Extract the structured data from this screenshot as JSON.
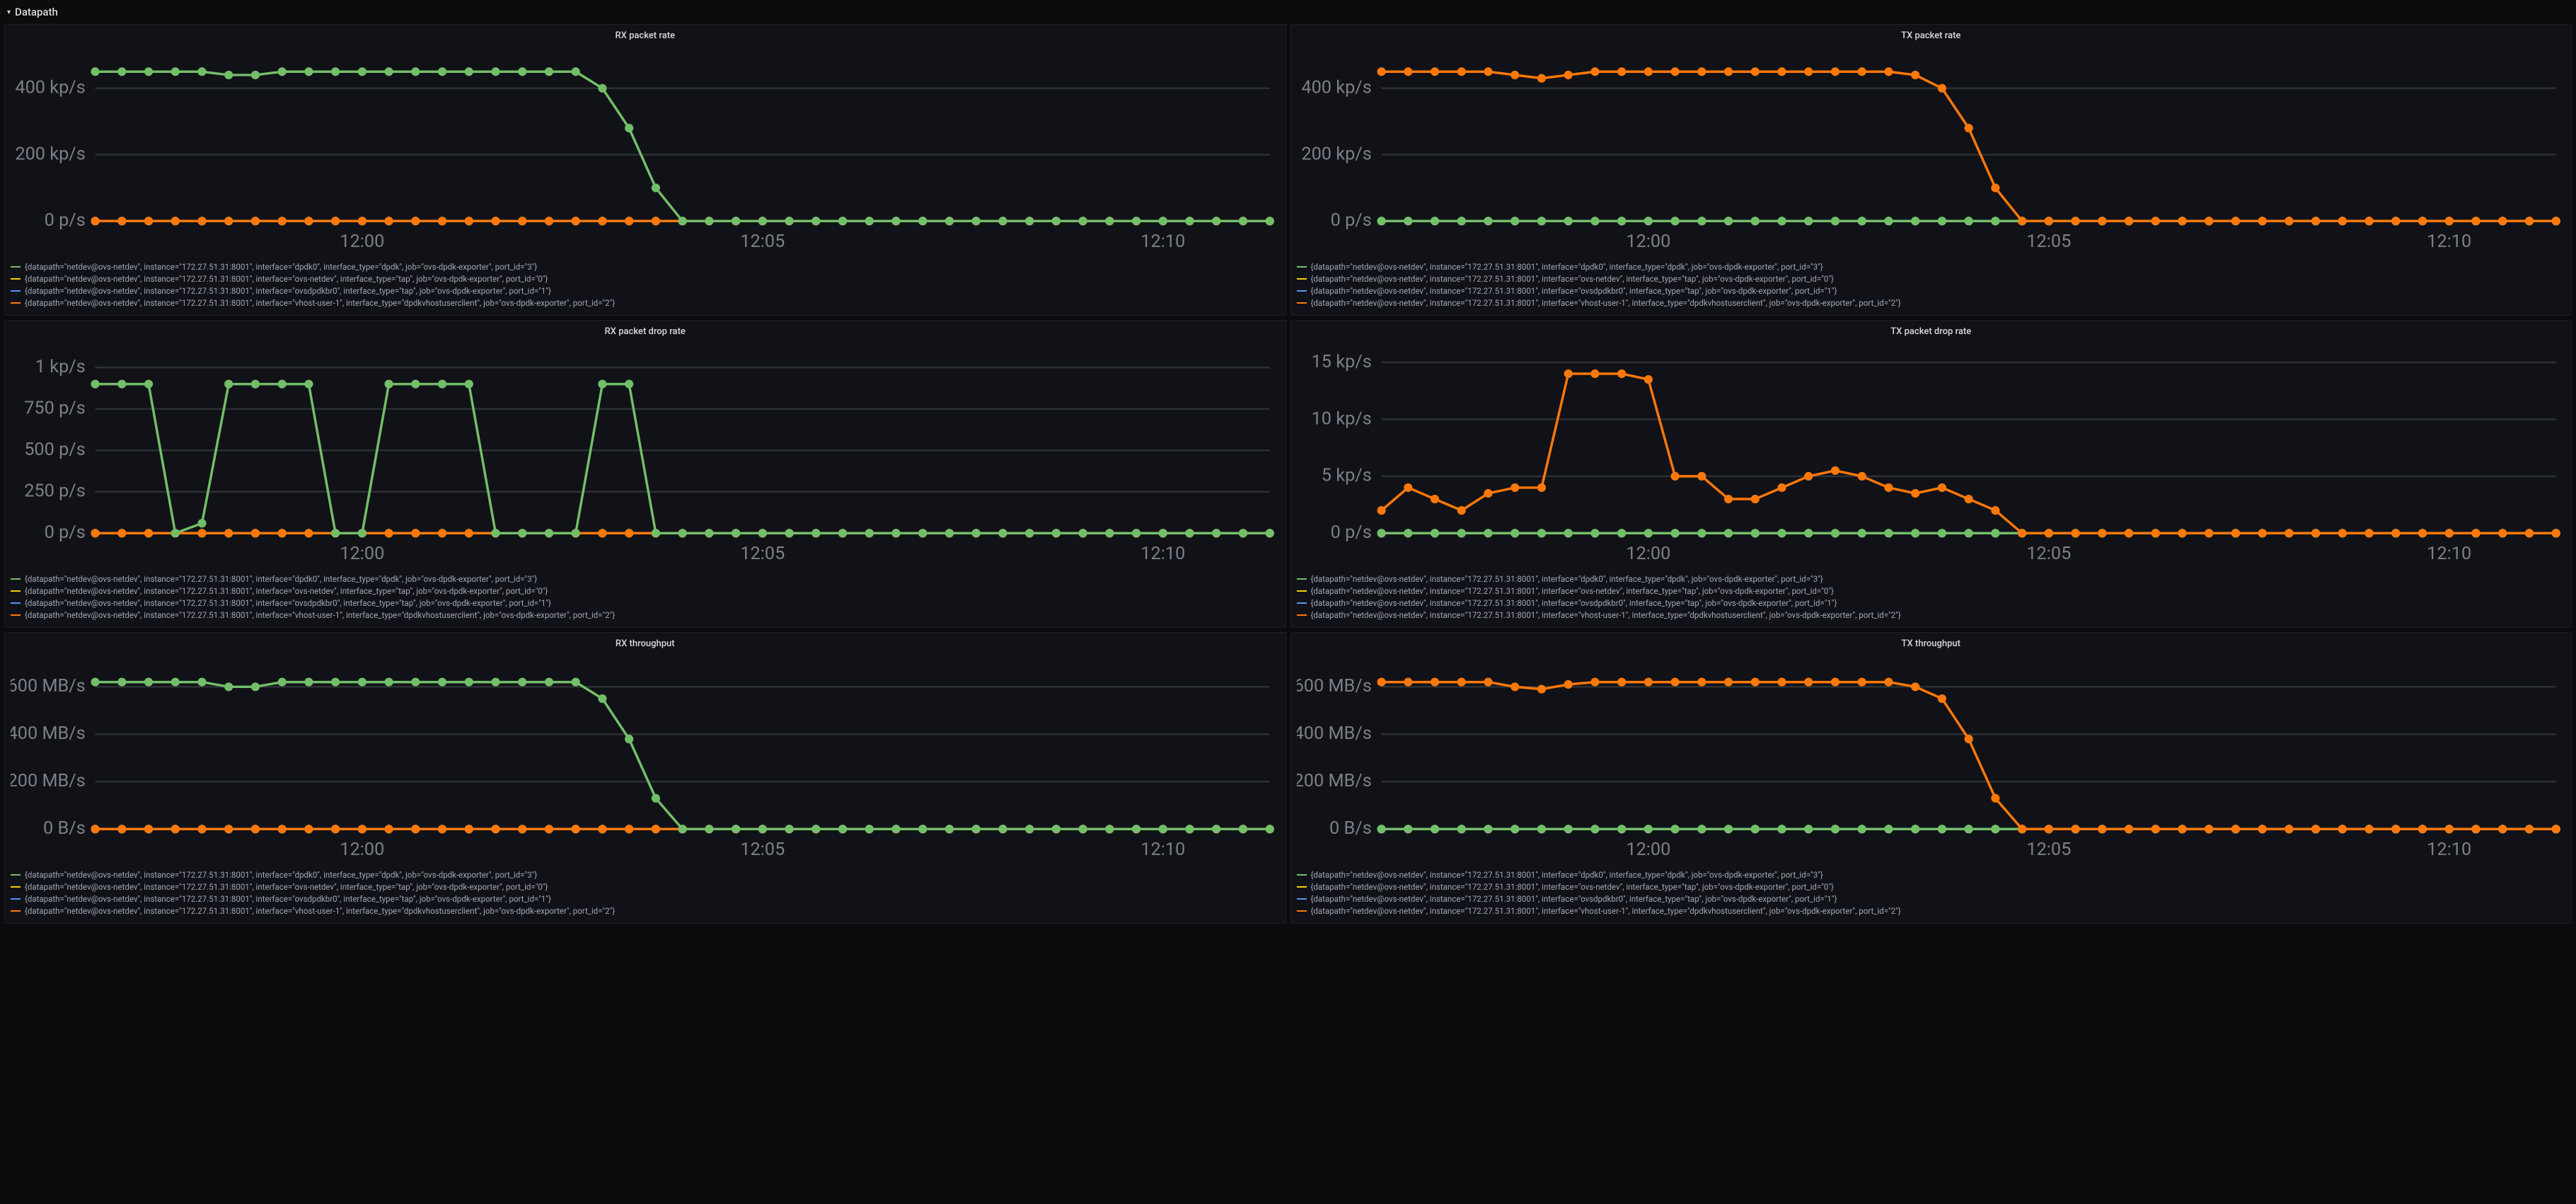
{
  "section": {
    "title": "Datapath"
  },
  "colors": {
    "bg": "#0b0c0e",
    "panel_bg": "#111217",
    "panel_border": "#1f1f23",
    "grid": "#2c3235",
    "axis_text": "#7b8087",
    "title_text": "#d8d9da",
    "legend_text": "#9fa7b3"
  },
  "series_colors": {
    "green": "#73bf69",
    "yellow": "#f2cc0c",
    "blue": "#5794f2",
    "orange": "#ff780a"
  },
  "x_axis": {
    "ticks": [
      "12:00",
      "12:05",
      "12:10"
    ],
    "n_points": 45,
    "tick_positions": [
      10,
      25,
      40
    ]
  },
  "legends": [
    {
      "color": "green",
      "label": "{datapath=\"netdev@ovs-netdev\", instance=\"172.27.51.31:8001\", interface=\"dpdk0\", interface_type=\"dpdk\", job=\"ovs-dpdk-exporter\", port_id=\"3\"}"
    },
    {
      "color": "yellow",
      "label": "{datapath=\"netdev@ovs-netdev\", instance=\"172.27.51.31:8001\", interface=\"ovs-netdev\", interface_type=\"tap\", job=\"ovs-dpdk-exporter\", port_id=\"0\"}"
    },
    {
      "color": "blue",
      "label": "{datapath=\"netdev@ovs-netdev\", instance=\"172.27.51.31:8001\", interface=\"ovsdpdkbr0\", interface_type=\"tap\", job=\"ovs-dpdk-exporter\", port_id=\"1\"}"
    },
    {
      "color": "orange",
      "label": "{datapath=\"netdev@ovs-netdev\", instance=\"172.27.51.31:8001\", interface=\"vhost-user-1\", interface_type=\"dpdkvhostuserclient\", job=\"ovs-dpdk-exporter\", port_id=\"2\"}"
    }
  ],
  "panels": [
    {
      "id": "rx_packet_rate",
      "title": "RX packet rate",
      "y": {
        "ticks": [
          0,
          200,
          400
        ],
        "labels": [
          "0 p/s",
          "200 kp/s",
          "400 kp/s"
        ],
        "max": 500
      },
      "series": {
        "green": [
          450,
          450,
          450,
          450,
          450,
          440,
          440,
          450,
          450,
          450,
          450,
          450,
          450,
          450,
          450,
          450,
          450,
          450,
          450,
          400,
          280,
          100,
          0,
          0,
          0,
          0,
          0,
          0,
          0,
          0,
          0,
          0,
          0,
          0,
          0,
          0,
          0,
          0,
          0,
          0,
          0,
          0,
          0,
          0,
          0
        ],
        "yellow": [
          0,
          0,
          0,
          0,
          0,
          0,
          0,
          0,
          0,
          0,
          0,
          0,
          0,
          0,
          0,
          0,
          0,
          0,
          0,
          0,
          0,
          0,
          0,
          0,
          0,
          0,
          0,
          0,
          0,
          0,
          0,
          0,
          0,
          0,
          0,
          0,
          0,
          0,
          0,
          0,
          0,
          0,
          0,
          0,
          0
        ],
        "blue": [
          0,
          0,
          0,
          0,
          0,
          0,
          0,
          0,
          0,
          0,
          0,
          0,
          0,
          0,
          0,
          0,
          0,
          0,
          0,
          0,
          0,
          0,
          0,
          0,
          0,
          0,
          0,
          0,
          0,
          0,
          0,
          0,
          0,
          0,
          0,
          0,
          0,
          0,
          0,
          0,
          0,
          0,
          0,
          0,
          0
        ],
        "orange": [
          0,
          0,
          0,
          0,
          0,
          0,
          0,
          0,
          0,
          0,
          0,
          0,
          0,
          0,
          0,
          0,
          0,
          0,
          0,
          0,
          0,
          0,
          0,
          0,
          0,
          0,
          0,
          0,
          0,
          0,
          0,
          0,
          0,
          0,
          0,
          0,
          0,
          0,
          0,
          0,
          0,
          0,
          0,
          0,
          0
        ]
      }
    },
    {
      "id": "tx_packet_rate",
      "title": "TX packet rate",
      "y": {
        "ticks": [
          0,
          200,
          400
        ],
        "labels": [
          "0 p/s",
          "200 kp/s",
          "400 kp/s"
        ],
        "max": 500
      },
      "series": {
        "green": [
          0,
          0,
          0,
          0,
          0,
          0,
          0,
          0,
          0,
          0,
          0,
          0,
          0,
          0,
          0,
          0,
          0,
          0,
          0,
          0,
          0,
          0,
          0,
          0,
          0,
          0,
          0,
          0,
          0,
          0,
          0,
          0,
          0,
          0,
          0,
          0,
          0,
          0,
          0,
          0,
          0,
          0,
          0,
          0,
          0
        ],
        "yellow": [
          0,
          0,
          0,
          0,
          0,
          0,
          0,
          0,
          0,
          0,
          0,
          0,
          0,
          0,
          0,
          0,
          0,
          0,
          0,
          0,
          0,
          0,
          0,
          0,
          0,
          0,
          0,
          0,
          0,
          0,
          0,
          0,
          0,
          0,
          0,
          0,
          0,
          0,
          0,
          0,
          0,
          0,
          0,
          0,
          0
        ],
        "blue": [
          0,
          0,
          0,
          0,
          0,
          0,
          0,
          0,
          0,
          0,
          0,
          0,
          0,
          0,
          0,
          0,
          0,
          0,
          0,
          0,
          0,
          0,
          0,
          0,
          0,
          0,
          0,
          0,
          0,
          0,
          0,
          0,
          0,
          0,
          0,
          0,
          0,
          0,
          0,
          0,
          0,
          0,
          0,
          0,
          0
        ],
        "orange": [
          450,
          450,
          450,
          450,
          450,
          440,
          430,
          440,
          450,
          450,
          450,
          450,
          450,
          450,
          450,
          450,
          450,
          450,
          450,
          450,
          440,
          400,
          280,
          100,
          0,
          0,
          0,
          0,
          0,
          0,
          0,
          0,
          0,
          0,
          0,
          0,
          0,
          0,
          0,
          0,
          0,
          0,
          0,
          0,
          0
        ]
      }
    },
    {
      "id": "rx_packet_drop_rate",
      "title": "RX packet drop rate",
      "y": {
        "ticks": [
          0,
          250,
          500,
          750,
          1000
        ],
        "labels": [
          "0 p/s",
          "250 p/s",
          "500 p/s",
          "750 p/s",
          "1 kp/s"
        ],
        "max": 1100
      },
      "series": {
        "green": [
          900,
          900,
          900,
          0,
          60,
          900,
          900,
          900,
          900,
          0,
          0,
          900,
          900,
          900,
          900,
          0,
          0,
          0,
          0,
          900,
          900,
          0,
          0,
          0,
          0,
          0,
          0,
          0,
          0,
          0,
          0,
          0,
          0,
          0,
          0,
          0,
          0,
          0,
          0,
          0,
          0,
          0,
          0,
          0,
          0
        ],
        "yellow": [
          0,
          0,
          0,
          0,
          0,
          0,
          0,
          0,
          0,
          0,
          0,
          0,
          0,
          0,
          0,
          0,
          0,
          0,
          0,
          0,
          0,
          0,
          0,
          0,
          0,
          0,
          0,
          0,
          0,
          0,
          0,
          0,
          0,
          0,
          0,
          0,
          0,
          0,
          0,
          0,
          0,
          0,
          0,
          0,
          0
        ],
        "blue": [
          0,
          0,
          0,
          0,
          0,
          0,
          0,
          0,
          0,
          0,
          0,
          0,
          0,
          0,
          0,
          0,
          0,
          0,
          0,
          0,
          0,
          0,
          0,
          0,
          0,
          0,
          0,
          0,
          0,
          0,
          0,
          0,
          0,
          0,
          0,
          0,
          0,
          0,
          0,
          0,
          0,
          0,
          0,
          0,
          0
        ],
        "orange": [
          0,
          0,
          0,
          0,
          0,
          0,
          0,
          0,
          0,
          0,
          0,
          0,
          0,
          0,
          0,
          0,
          0,
          0,
          0,
          0,
          0,
          0,
          0,
          0,
          0,
          0,
          0,
          0,
          0,
          0,
          0,
          0,
          0,
          0,
          0,
          0,
          0,
          0,
          0,
          0,
          0,
          0,
          0,
          0,
          0
        ]
      }
    },
    {
      "id": "tx_packet_drop_rate",
      "title": "TX packet drop rate",
      "y": {
        "ticks": [
          0,
          5,
          10,
          15
        ],
        "labels": [
          "0 p/s",
          "5 kp/s",
          "10 kp/s",
          "15 kp/s"
        ],
        "max": 16
      },
      "series": {
        "green": [
          0,
          0,
          0,
          0,
          0,
          0,
          0,
          0,
          0,
          0,
          0,
          0,
          0,
          0,
          0,
          0,
          0,
          0,
          0,
          0,
          0,
          0,
          0,
          0,
          0,
          0,
          0,
          0,
          0,
          0,
          0,
          0,
          0,
          0,
          0,
          0,
          0,
          0,
          0,
          0,
          0,
          0,
          0,
          0,
          0
        ],
        "yellow": [
          0,
          0,
          0,
          0,
          0,
          0,
          0,
          0,
          0,
          0,
          0,
          0,
          0,
          0,
          0,
          0,
          0,
          0,
          0,
          0,
          0,
          0,
          0,
          0,
          0,
          0,
          0,
          0,
          0,
          0,
          0,
          0,
          0,
          0,
          0,
          0,
          0,
          0,
          0,
          0,
          0,
          0,
          0,
          0,
          0
        ],
        "blue": [
          0,
          0,
          0,
          0,
          0,
          0,
          0,
          0,
          0,
          0,
          0,
          0,
          0,
          0,
          0,
          0,
          0,
          0,
          0,
          0,
          0,
          0,
          0,
          0,
          0,
          0,
          0,
          0,
          0,
          0,
          0,
          0,
          0,
          0,
          0,
          0,
          0,
          0,
          0,
          0,
          0,
          0,
          0,
          0,
          0
        ],
        "orange": [
          2,
          4,
          3,
          2,
          3.5,
          4,
          4,
          14,
          14,
          14,
          13.5,
          5,
          5,
          3,
          3,
          4,
          5,
          5.5,
          5,
          4,
          3.5,
          4,
          3,
          2,
          0,
          0,
          0,
          0,
          0,
          0,
          0,
          0,
          0,
          0,
          0,
          0,
          0,
          0,
          0,
          0,
          0,
          0,
          0,
          0,
          0
        ]
      }
    },
    {
      "id": "rx_throughput",
      "title": "RX throughput",
      "y": {
        "ticks": [
          0,
          200,
          400,
          600
        ],
        "labels": [
          "0 B/s",
          "200 MB/s",
          "400 MB/s",
          "600 MB/s"
        ],
        "max": 700
      },
      "series": {
        "green": [
          620,
          620,
          620,
          620,
          620,
          600,
          600,
          620,
          620,
          620,
          620,
          620,
          620,
          620,
          620,
          620,
          620,
          620,
          620,
          550,
          380,
          130,
          0,
          0,
          0,
          0,
          0,
          0,
          0,
          0,
          0,
          0,
          0,
          0,
          0,
          0,
          0,
          0,
          0,
          0,
          0,
          0,
          0,
          0,
          0
        ],
        "yellow": [
          0,
          0,
          0,
          0,
          0,
          0,
          0,
          0,
          0,
          0,
          0,
          0,
          0,
          0,
          0,
          0,
          0,
          0,
          0,
          0,
          0,
          0,
          0,
          0,
          0,
          0,
          0,
          0,
          0,
          0,
          0,
          0,
          0,
          0,
          0,
          0,
          0,
          0,
          0,
          0,
          0,
          0,
          0,
          0,
          0
        ],
        "blue": [
          0,
          0,
          0,
          0,
          0,
          0,
          0,
          0,
          0,
          0,
          0,
          0,
          0,
          0,
          0,
          0,
          0,
          0,
          0,
          0,
          0,
          0,
          0,
          0,
          0,
          0,
          0,
          0,
          0,
          0,
          0,
          0,
          0,
          0,
          0,
          0,
          0,
          0,
          0,
          0,
          0,
          0,
          0,
          0,
          0
        ],
        "orange": [
          0,
          0,
          0,
          0,
          0,
          0,
          0,
          0,
          0,
          0,
          0,
          0,
          0,
          0,
          0,
          0,
          0,
          0,
          0,
          0,
          0,
          0,
          0,
          0,
          0,
          0,
          0,
          0,
          0,
          0,
          0,
          0,
          0,
          0,
          0,
          0,
          0,
          0,
          0,
          0,
          0,
          0,
          0,
          0,
          0
        ]
      }
    },
    {
      "id": "tx_throughput",
      "title": "TX throughput",
      "y": {
        "ticks": [
          0,
          200,
          400,
          600
        ],
        "labels": [
          "0 B/s",
          "200 MB/s",
          "400 MB/s",
          "600 MB/s"
        ],
        "max": 700
      },
      "series": {
        "green": [
          0,
          0,
          0,
          0,
          0,
          0,
          0,
          0,
          0,
          0,
          0,
          0,
          0,
          0,
          0,
          0,
          0,
          0,
          0,
          0,
          0,
          0,
          0,
          0,
          0,
          0,
          0,
          0,
          0,
          0,
          0,
          0,
          0,
          0,
          0,
          0,
          0,
          0,
          0,
          0,
          0,
          0,
          0,
          0,
          0
        ],
        "yellow": [
          0,
          0,
          0,
          0,
          0,
          0,
          0,
          0,
          0,
          0,
          0,
          0,
          0,
          0,
          0,
          0,
          0,
          0,
          0,
          0,
          0,
          0,
          0,
          0,
          0,
          0,
          0,
          0,
          0,
          0,
          0,
          0,
          0,
          0,
          0,
          0,
          0,
          0,
          0,
          0,
          0,
          0,
          0,
          0,
          0
        ],
        "blue": [
          0,
          0,
          0,
          0,
          0,
          0,
          0,
          0,
          0,
          0,
          0,
          0,
          0,
          0,
          0,
          0,
          0,
          0,
          0,
          0,
          0,
          0,
          0,
          0,
          0,
          0,
          0,
          0,
          0,
          0,
          0,
          0,
          0,
          0,
          0,
          0,
          0,
          0,
          0,
          0,
          0,
          0,
          0,
          0,
          0
        ],
        "orange": [
          620,
          620,
          620,
          620,
          620,
          600,
          590,
          610,
          620,
          620,
          620,
          620,
          620,
          620,
          620,
          620,
          620,
          620,
          620,
          620,
          600,
          550,
          380,
          130,
          0,
          0,
          0,
          0,
          0,
          0,
          0,
          0,
          0,
          0,
          0,
          0,
          0,
          0,
          0,
          0,
          0,
          0,
          0,
          0,
          0
        ]
      }
    }
  ]
}
